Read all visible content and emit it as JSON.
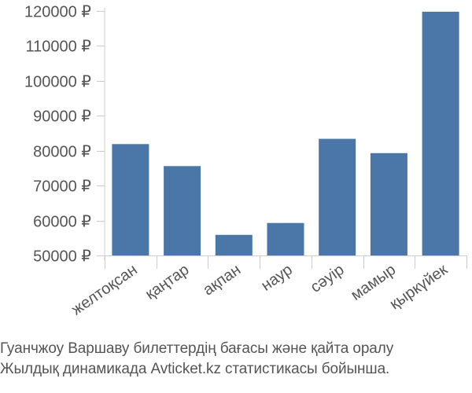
{
  "chart_data": {
    "type": "bar",
    "categories": [
      "желтоқсан",
      "қаңтар",
      "ақпан",
      "наур",
      "сәуір",
      "мамыр",
      "қыркүйек"
    ],
    "values": [
      81900,
      75600,
      55900,
      59300,
      83400,
      79300,
      119800
    ],
    "ylim": [
      50000,
      120000
    ],
    "yticks": [
      50000,
      60000,
      70000,
      80000,
      90000,
      100000,
      110000,
      120000
    ],
    "ytick_labels": [
      "50000 ₽",
      "60000 ₽",
      "70000 ₽",
      "80000 ₽",
      "90000 ₽",
      "100000 ₽",
      "110000 ₽",
      "120000 ₽"
    ],
    "bar_color": "#4a76a8",
    "grid": false,
    "legend": "none"
  },
  "caption": {
    "line1": "Гуанчжоу Варшаву билеттердің бағасы және қайта оралу",
    "line2": "Жылдық динамикада Avticket.kz статистикасы бойынша."
  }
}
